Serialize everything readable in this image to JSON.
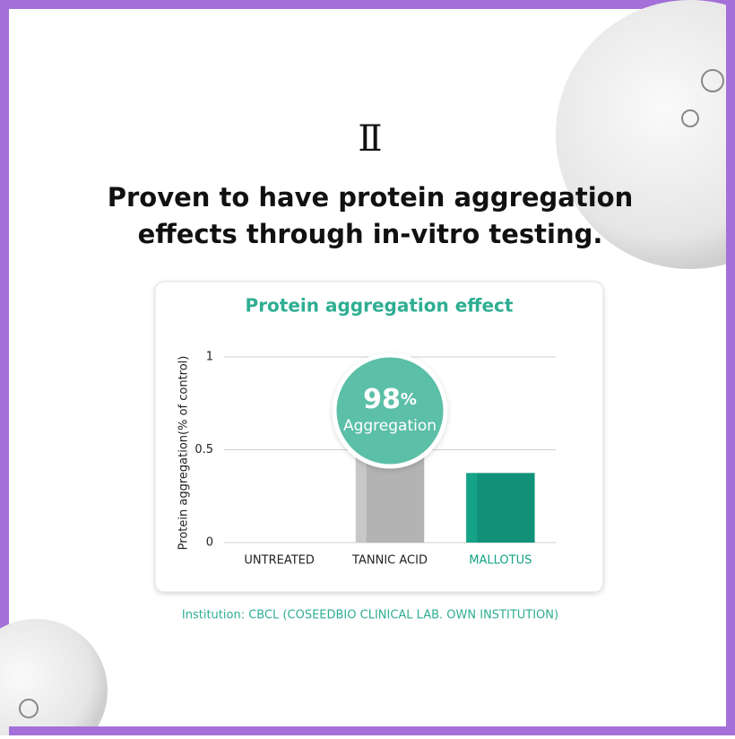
{
  "header": {
    "numeral": "Ⅱ",
    "headline": [
      "Proven to have protein aggregation",
      "effects through in-vitro testing."
    ]
  },
  "chart_data": {
    "type": "bar",
    "title": "Protein aggregation effect",
    "y_label": "Protein aggregation(% of control)",
    "categories": [
      "UNTREATED",
      "TANNIC ACID",
      "MALLOTUS"
    ],
    "values": [
      0,
      0.5,
      0.375
    ],
    "colors": [
      "#c8c8c8",
      "#c8c8c8",
      "#14a386"
    ],
    "label_colors": [
      "#222222",
      "#222222",
      "#14a386"
    ],
    "ylim": [
      0,
      1
    ],
    "yticks": [
      0,
      0.5,
      1
    ],
    "grid": true,
    "annotation": {
      "number": "98",
      "unit": "%",
      "text": "Aggregation"
    }
  },
  "footnote": "Institution: CBCL (COSEEDBIO CLINICAL LAB. OWN INSTITUTION)"
}
